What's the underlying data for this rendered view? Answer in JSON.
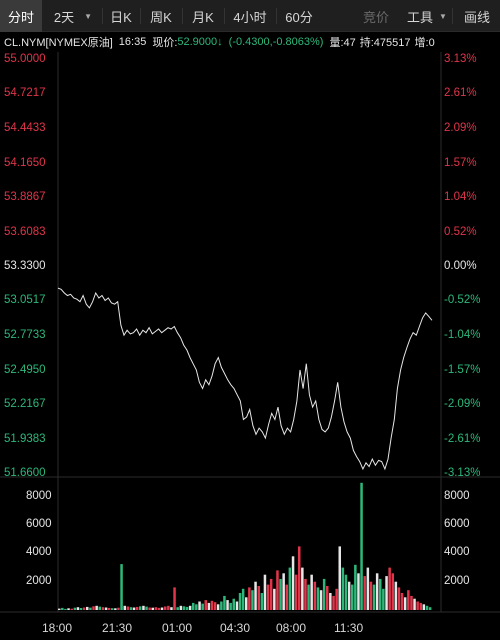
{
  "toolbar": {
    "tabs": [
      {
        "label": "分时",
        "active": true
      },
      {
        "label": "2天",
        "dropdown": true
      },
      {
        "label": "日K"
      },
      {
        "label": "周K"
      },
      {
        "label": "月K"
      },
      {
        "label": "4小时"
      },
      {
        "label": "60分"
      }
    ],
    "bid_label": "竞价",
    "tools_label": "工具",
    "tools_caret": "▼",
    "draw_label": "画线"
  },
  "info": {
    "symbol": "CL.NYM[NYMEX原油]",
    "time": "16:35",
    "price_label": "现价:",
    "price": "52.9000",
    "arrow": "↓",
    "change": "(-0.4300,",
    "change_pct": "-0.8063%)",
    "volume_text": "量:47",
    "holdings_text": "持:475517",
    "extra_text": "增:0"
  },
  "colors": {
    "up": "#e0354a",
    "down": "#2cb87a",
    "line": "#e6e6e6",
    "bg": "#000000"
  },
  "chart_data": {
    "type": "line",
    "price_axis": {
      "left_labels": [
        "55.0000",
        "54.7217",
        "54.4433",
        "54.1650",
        "53.8867",
        "53.6083",
        "53.3300",
        "53.0517",
        "52.7733",
        "52.4950",
        "52.2167",
        "51.9383",
        "51.6600"
      ],
      "right_labels": [
        "3.13%",
        "2.61%",
        "2.09%",
        "1.57%",
        "1.04%",
        "0.52%",
        "0.00%",
        "-0.52%",
        "-1.04%",
        "-1.57%",
        "-2.09%",
        "-2.61%",
        "-3.13%"
      ],
      "ylim": [
        51.66,
        55.0
      ],
      "reference": 53.33
    },
    "volume_axis": {
      "labels": [
        "8000",
        "6000",
        "4000",
        "2000"
      ],
      "ylim": [
        0,
        9200
      ]
    },
    "x_labels": [
      "18:00",
      "21:30",
      "01:00",
      "04:30",
      "08:00",
      "11:30"
    ],
    "price_series": [
      53.16,
      53.15,
      53.12,
      53.1,
      53.11,
      53.08,
      53.07,
      53.05,
      53.1,
      53.03,
      53.0,
      53.05,
      53.12,
      53.08,
      53.1,
      53.06,
      53.08,
      53.04,
      53.03,
      53.05,
      52.86,
      52.78,
      52.82,
      52.79,
      52.8,
      52.83,
      52.78,
      52.82,
      52.8,
      52.84,
      52.79,
      52.81,
      52.83,
      52.8,
      52.82,
      52.84,
      52.83,
      52.85,
      52.8,
      52.76,
      52.7,
      52.66,
      52.6,
      52.55,
      52.5,
      52.4,
      52.35,
      52.42,
      52.38,
      52.45,
      52.55,
      52.6,
      52.52,
      52.47,
      52.42,
      52.38,
      52.35,
      52.3,
      52.25,
      52.1,
      52.12,
      52.18,
      52.05,
      51.98,
      52.03,
      52.0,
      51.95,
      52.06,
      52.15,
      52.1,
      52.2,
      52.05,
      51.98,
      52.03,
      52.0,
      52.1,
      52.25,
      52.5,
      52.35,
      52.55,
      52.3,
      52.2,
      52.25,
      52.1,
      52.02,
      52.0,
      52.03,
      52.12,
      52.25,
      52.4,
      52.2,
      52.08,
      52.0,
      51.95,
      51.85,
      51.8,
      51.76,
      51.7,
      51.75,
      51.72,
      51.78,
      51.73,
      51.77,
      51.76,
      51.7,
      51.78,
      51.95,
      52.1,
      52.35,
      52.5,
      52.6,
      52.68,
      52.75,
      52.8,
      52.78,
      52.85,
      52.92,
      52.96,
      52.93,
      52.9
    ],
    "volume_series": [
      100,
      150,
      80,
      120,
      90,
      160,
      200,
      140,
      180,
      220,
      170,
      260,
      300,
      240,
      200,
      180,
      150,
      130,
      120,
      160,
      3250,
      300,
      250,
      200,
      180,
      220,
      260,
      300,
      240,
      180,
      160,
      200,
      150,
      180,
      250,
      300,
      200,
      1600,
      200,
      300,
      260,
      220,
      300,
      500,
      400,
      600,
      450,
      700,
      500,
      650,
      550,
      400,
      600,
      1000,
      700,
      500,
      800,
      600,
      1200,
      1500,
      900,
      1600,
      1400,
      2000,
      1700,
      1200,
      2500,
      1800,
      2200,
      1500,
      2800,
      2200,
      2600,
      1800,
      3000,
      3800,
      2500,
      4500,
      3000,
      2200,
      1800,
      2500,
      2000,
      1600,
      1400,
      2200,
      1700,
      1200,
      1000,
      1500,
      4500,
      3000,
      2500,
      2000,
      1800,
      3200,
      2600,
      9000,
      2400,
      3000,
      2000,
      1800,
      2600,
      2200,
      1500,
      2400,
      3000,
      2600,
      2000,
      1600,
      1200,
      900,
      1400,
      1000,
      800,
      600,
      500,
      400,
      300,
      200
    ]
  }
}
